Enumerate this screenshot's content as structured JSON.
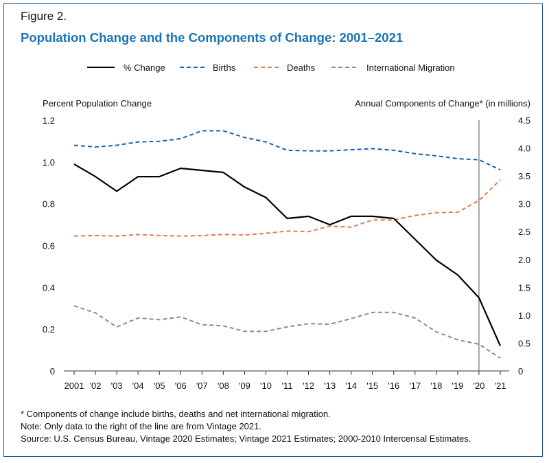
{
  "figure_label": "Figure 2.",
  "title": "Population Change and the Components of Change: 2001–2021",
  "colors": {
    "pct_change": "#000000",
    "births": "#1a5fa8",
    "deaths": "#e07a4f",
    "migration": "#7a8fa0",
    "title": "#1a73b8",
    "frame": "#1f4e8c"
  },
  "chart_data": {
    "type": "line",
    "title": "Population Change and the Components of Change: 2001–2021",
    "x": [
      "2001",
      "'02",
      "'03",
      "'04",
      "'05",
      "'06",
      "'07",
      "'08",
      "'09",
      "'10",
      "'11",
      "'12",
      "'13",
      "'14",
      "'15",
      "'16",
      "'17",
      "'18",
      "'19",
      "'20",
      "'21"
    ],
    "left_axis": {
      "label": "Percent Population Change",
      "lim": [
        0,
        1.2
      ],
      "ticks": [
        "0",
        "0.2",
        "0.4",
        "0.6",
        "0.8",
        "1.0",
        "1.2"
      ]
    },
    "right_axis": {
      "label": "Annual Components of Change* (in millions)",
      "lim": [
        0,
        4.5
      ],
      "ticks": [
        "0",
        "0.5",
        "1.0",
        "1.5",
        "2.0",
        "2.5",
        "3.0",
        "3.5",
        "4.0",
        "4.5"
      ]
    },
    "legend_position": "top",
    "grid": false,
    "vertical_marker": {
      "after_index": 19,
      "note": "Vintage 2021"
    },
    "series": [
      {
        "name": "% Change",
        "axis": "left",
        "style": "solid",
        "values": [
          0.99,
          0.93,
          0.86,
          0.93,
          0.93,
          0.97,
          0.96,
          0.95,
          0.88,
          0.83,
          0.73,
          0.74,
          0.7,
          0.74,
          0.74,
          0.73,
          0.63,
          0.53,
          0.46,
          0.35,
          0.12
        ]
      },
      {
        "name": "Births",
        "axis": "right",
        "style": "dashed",
        "values": [
          4.05,
          4.02,
          4.05,
          4.11,
          4.12,
          4.17,
          4.31,
          4.31,
          4.19,
          4.11,
          3.96,
          3.95,
          3.95,
          3.97,
          3.99,
          3.96,
          3.9,
          3.86,
          3.81,
          3.79,
          3.61
        ]
      },
      {
        "name": "Deaths",
        "axis": "right",
        "style": "dashed",
        "values": [
          2.42,
          2.43,
          2.42,
          2.45,
          2.43,
          2.42,
          2.43,
          2.45,
          2.44,
          2.47,
          2.51,
          2.5,
          2.6,
          2.58,
          2.71,
          2.71,
          2.79,
          2.84,
          2.85,
          3.06,
          3.43
        ]
      },
      {
        "name": "International Migration",
        "axis": "right",
        "style": "dashed",
        "values": [
          1.17,
          1.04,
          0.79,
          0.95,
          0.92,
          0.97,
          0.83,
          0.81,
          0.71,
          0.71,
          0.79,
          0.85,
          0.84,
          0.94,
          1.05,
          1.05,
          0.95,
          0.7,
          0.56,
          0.48,
          0.23
        ]
      }
    ]
  },
  "notes": [
    "* Components of change include births, deaths and net international migration.",
    "Note: Only data to the right of the line are from Vintage 2021.",
    "Source: U.S. Census Bureau, Vintage 2020 Estimates; Vintage 2021 Estimates; 2000-2010 Intercensal Estimates."
  ]
}
